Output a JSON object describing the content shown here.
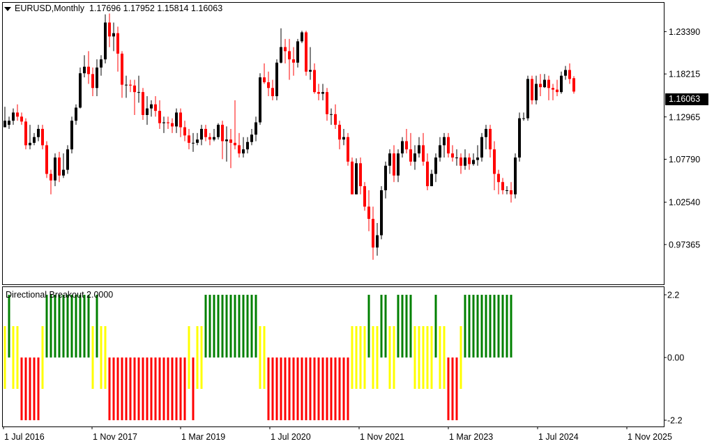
{
  "header": {
    "symbol": "EURUSD",
    "timeframe": "Monthly",
    "title_text": "EURUSD,Monthly",
    "ohlc_text": "1.17696 1.17952 1.15814 1.16063"
  },
  "indicator": {
    "title": "Directional Breakout 2.0000"
  },
  "current_price": "1.16063",
  "colors": {
    "bull_candle": "#000000",
    "bear_candle": "#ff0000",
    "ind_up": "#008000",
    "ind_neutral": "#ffff00",
    "ind_down": "#ff0000",
    "frame": "#000000",
    "background": "#ffffff"
  },
  "chart_data": [
    {
      "type": "candlestick",
      "price_axis": {
        "ylim": [
          0.925,
          1.27
        ],
        "ticks": [
          "1.23390",
          "1.18215",
          "1.12965",
          "1.07790",
          "1.02540",
          "0.97365"
        ]
      },
      "time_axis": {
        "labels": [
          "1 Jul 2016",
          "1 Nov 2017",
          "1 Mar 2019",
          "1 Jul 2020",
          "1 Nov 2021",
          "1 Mar 2023",
          "1 Jul 2024",
          "1 Nov 2025"
        ]
      },
      "start_month": "2016-01",
      "candles": [
        [
          1.117,
          1.125,
          1.142,
          1.12
        ],
        [
          1.12,
          1.125,
          1.13,
          1.115
        ],
        [
          1.125,
          1.135,
          1.14,
          1.12
        ],
        [
          1.135,
          1.13,
          1.145,
          1.125
        ],
        [
          1.13,
          1.124,
          1.135,
          1.12
        ],
        [
          1.124,
          1.095,
          1.128,
          1.09
        ],
        [
          1.095,
          1.098,
          1.12,
          1.09
        ],
        [
          1.098,
          1.105,
          1.11,
          1.095
        ],
        [
          1.105,
          1.115,
          1.12,
          1.1
        ],
        [
          1.115,
          1.095,
          1.12,
          1.09
        ],
        [
          1.095,
          1.06,
          1.1,
          1.055
        ],
        [
          1.06,
          1.052,
          1.065,
          1.035
        ],
        [
          1.052,
          1.08,
          1.085,
          1.045
        ],
        [
          1.08,
          1.058,
          1.087,
          1.05
        ],
        [
          1.058,
          1.065,
          1.085,
          1.055
        ],
        [
          1.065,
          1.09,
          1.095,
          1.06
        ],
        [
          1.09,
          1.125,
          1.13,
          1.085
        ],
        [
          1.125,
          1.141,
          1.145,
          1.12
        ],
        [
          1.141,
          1.183,
          1.19,
          1.14
        ],
        [
          1.183,
          1.191,
          1.205,
          1.178
        ],
        [
          1.191,
          1.182,
          1.21,
          1.17
        ],
        [
          1.182,
          1.165,
          1.19,
          1.155
        ],
        [
          1.165,
          1.19,
          1.2,
          1.155
        ],
        [
          1.19,
          1.2,
          1.205,
          1.18
        ],
        [
          1.2,
          1.245,
          1.255,
          1.195
        ],
        [
          1.245,
          1.228,
          1.256,
          1.215
        ],
        [
          1.228,
          1.232,
          1.245,
          1.21
        ],
        [
          1.232,
          1.207,
          1.24,
          1.185
        ],
        [
          1.207,
          1.169,
          1.21,
          1.153
        ],
        [
          1.169,
          1.169,
          1.18,
          1.153
        ],
        [
          1.169,
          1.168,
          1.175,
          1.16
        ],
        [
          1.168,
          1.16,
          1.175,
          1.132
        ],
        [
          1.16,
          1.16,
          1.18,
          1.147
        ],
        [
          1.16,
          1.132,
          1.165,
          1.126
        ],
        [
          1.132,
          1.14,
          1.155,
          1.12
        ],
        [
          1.14,
          1.145,
          1.15,
          1.13
        ],
        [
          1.145,
          1.137,
          1.155,
          1.13
        ],
        [
          1.137,
          1.122,
          1.15,
          1.115
        ],
        [
          1.122,
          1.123,
          1.13,
          1.11
        ],
        [
          1.123,
          1.122,
          1.13,
          1.115
        ],
        [
          1.122,
          1.118,
          1.128,
          1.11
        ],
        [
          1.118,
          1.135,
          1.14,
          1.11
        ],
        [
          1.135,
          1.117,
          1.14,
          1.105
        ],
        [
          1.117,
          1.107,
          1.125,
          1.1
        ],
        [
          1.107,
          1.098,
          1.115,
          1.09
        ],
        [
          1.098,
          1.098,
          1.11,
          1.087
        ],
        [
          1.098,
          1.102,
          1.11,
          1.095
        ],
        [
          1.102,
          1.115,
          1.12,
          1.095
        ],
        [
          1.115,
          1.105,
          1.12,
          1.1
        ],
        [
          1.105,
          1.102,
          1.11,
          1.095
        ],
        [
          1.102,
          1.105,
          1.115,
          1.1
        ],
        [
          1.105,
          1.12,
          1.122,
          1.102
        ],
        [
          1.12,
          1.1,
          1.125,
          1.078
        ],
        [
          1.1,
          1.102,
          1.118,
          1.075
        ],
        [
          1.102,
          1.098,
          1.115,
          1.067
        ],
        [
          1.098,
          1.095,
          1.15,
          1.09
        ],
        [
          1.095,
          1.085,
          1.11,
          1.08
        ],
        [
          1.085,
          1.09,
          1.105,
          1.08
        ],
        [
          1.09,
          1.099,
          1.105,
          1.085
        ],
        [
          1.099,
          1.108,
          1.115,
          1.095
        ],
        [
          1.108,
          1.123,
          1.13,
          1.1
        ],
        [
          1.123,
          1.178,
          1.183,
          1.12
        ],
        [
          1.178,
          1.172,
          1.195,
          1.17
        ],
        [
          1.172,
          1.165,
          1.185,
          1.155
        ],
        [
          1.165,
          1.155,
          1.175,
          1.15
        ],
        [
          1.155,
          1.196,
          1.2,
          1.15
        ],
        [
          1.196,
          1.215,
          1.238,
          1.195
        ],
        [
          1.215,
          1.21,
          1.225,
          1.195
        ],
        [
          1.21,
          1.2,
          1.225,
          1.175
        ],
        [
          1.2,
          1.196,
          1.215,
          1.18
        ],
        [
          1.196,
          1.222,
          1.225,
          1.19
        ],
        [
          1.222,
          1.233,
          1.235,
          1.22
        ],
        [
          1.233,
          1.185,
          1.235,
          1.18
        ],
        [
          1.185,
          1.187,
          1.215,
          1.175
        ],
        [
          1.187,
          1.16,
          1.195,
          1.158
        ],
        [
          1.16,
          1.158,
          1.17,
          1.15
        ],
        [
          1.158,
          1.16,
          1.17,
          1.15
        ],
        [
          1.16,
          1.133,
          1.165,
          1.125
        ],
        [
          1.133,
          1.133,
          1.14,
          1.12
        ],
        [
          1.133,
          1.12,
          1.145,
          1.115
        ],
        [
          1.12,
          1.102,
          1.125,
          1.09
        ],
        [
          1.102,
          1.105,
          1.115,
          1.095
        ],
        [
          1.105,
          1.075,
          1.11,
          1.07
        ],
        [
          1.075,
          1.035,
          1.08,
          1.035
        ],
        [
          1.035,
          1.073,
          1.079,
          1.035
        ],
        [
          1.073,
          1.045,
          1.08,
          1.035
        ],
        [
          1.045,
          1.02,
          1.05,
          1.015
        ],
        [
          1.02,
          1.005,
          1.04,
          0.99
        ],
        [
          1.005,
          0.97,
          1.02,
          0.955
        ],
        [
          0.97,
          0.985,
          1.0,
          0.96
        ],
        [
          0.985,
          1.04,
          1.045,
          0.98
        ],
        [
          1.04,
          1.07,
          1.075,
          1.03
        ],
        [
          1.07,
          1.085,
          1.09,
          1.06
        ],
        [
          1.085,
          1.058,
          1.095,
          1.05
        ],
        [
          1.058,
          1.085,
          1.09,
          1.05
        ],
        [
          1.085,
          1.1,
          1.105,
          1.08
        ],
        [
          1.1,
          1.09,
          1.115,
          1.085
        ],
        [
          1.09,
          1.075,
          1.11,
          1.07
        ],
        [
          1.075,
          1.085,
          1.095,
          1.065
        ],
        [
          1.085,
          1.095,
          1.105,
          1.08
        ],
        [
          1.095,
          1.075,
          1.11,
          1.07
        ],
        [
          1.075,
          1.045,
          1.085,
          1.04
        ],
        [
          1.045,
          1.06,
          1.065,
          1.045
        ],
        [
          1.06,
          1.08,
          1.085,
          1.05
        ],
        [
          1.08,
          1.095,
          1.105,
          1.075
        ],
        [
          1.095,
          1.105,
          1.11,
          1.08
        ],
        [
          1.105,
          1.085,
          1.11,
          1.08
        ],
        [
          1.085,
          1.08,
          1.095,
          1.075
        ],
        [
          1.08,
          1.08,
          1.09,
          1.07
        ],
        [
          1.08,
          1.07,
          1.085,
          1.06
        ],
        [
          1.07,
          1.08,
          1.09,
          1.065
        ],
        [
          1.08,
          1.072,
          1.085,
          1.065
        ],
        [
          1.072,
          1.077,
          1.085,
          1.07
        ],
        [
          1.077,
          1.08,
          1.095,
          1.07
        ],
        [
          1.08,
          1.105,
          1.11,
          1.075
        ],
        [
          1.105,
          1.115,
          1.12,
          1.09
        ],
        [
          1.115,
          1.09,
          1.12,
          1.08
        ],
        [
          1.09,
          1.06,
          1.1,
          1.04
        ],
        [
          1.06,
          1.05,
          1.065,
          1.035
        ],
        [
          1.05,
          1.04,
          1.055,
          1.035
        ],
        [
          1.04,
          1.04,
          1.045,
          1.035
        ],
        [
          1.04,
          1.035,
          1.05,
          1.025
        ],
        [
          1.035,
          1.08,
          1.085,
          1.03
        ],
        [
          1.08,
          1.128,
          1.135,
          1.075
        ],
        [
          1.128,
          1.128,
          1.135,
          1.125
        ],
        [
          1.128,
          1.176,
          1.18,
          1.125
        ],
        [
          1.176,
          1.15,
          1.18,
          1.145
        ],
        [
          1.15,
          1.17,
          1.18,
          1.145
        ],
        [
          1.17,
          1.166,
          1.182,
          1.155
        ],
        [
          1.166,
          1.175,
          1.182,
          1.165
        ],
        [
          1.175,
          1.165,
          1.18,
          1.15
        ],
        [
          1.165,
          1.163,
          1.17,
          1.15
        ],
        [
          1.163,
          1.16,
          1.175,
          1.155
        ],
        [
          1.16,
          1.18,
          1.185,
          1.158
        ],
        [
          1.18,
          1.187,
          1.192,
          1.175
        ],
        [
          1.187,
          1.176,
          1.195,
          1.17
        ],
        [
          1.17696,
          1.16063,
          1.17952,
          1.15814
        ]
      ]
    },
    {
      "type": "histogram",
      "title": "Directional Breakout 2.0000",
      "yticks": [
        "2.2",
        "0.00",
        "-2.2"
      ],
      "ylim": [
        -2.2,
        2.2
      ],
      "legend_codes": {
        "2": "up (green)",
        "1": "neutral (yellow)",
        "-2": "down (red)"
      },
      "values": [
        1,
        2,
        1,
        1,
        -2,
        -2,
        -2,
        -2,
        -2,
        1,
        2,
        2,
        2,
        2,
        2,
        2,
        2,
        2,
        2,
        2,
        2,
        1,
        2,
        1,
        1,
        -2,
        -2,
        -2,
        -2,
        -2,
        -2,
        -2,
        -2,
        -2,
        -2,
        -2,
        -2,
        -2,
        -2,
        -2,
        -2,
        -2,
        -2,
        -2,
        1,
        -2,
        1,
        1,
        2,
        2,
        2,
        2,
        2,
        2,
        2,
        2,
        2,
        2,
        2,
        2,
        2,
        1,
        1,
        -2,
        -2,
        -2,
        -2,
        -2,
        -2,
        -2,
        -2,
        -2,
        -2,
        -2,
        -2,
        -2,
        -2,
        -2,
        -2,
        -2,
        -2,
        -2,
        -2,
        1,
        1,
        1,
        1,
        2,
        1,
        1,
        2,
        2,
        1,
        1,
        2,
        2,
        2,
        2,
        1,
        1,
        1,
        1,
        1,
        2,
        1,
        1,
        -2,
        -2,
        -2,
        1,
        2,
        2,
        2,
        2,
        2,
        2,
        2,
        2,
        2,
        2,
        2,
        2
      ]
    }
  ]
}
